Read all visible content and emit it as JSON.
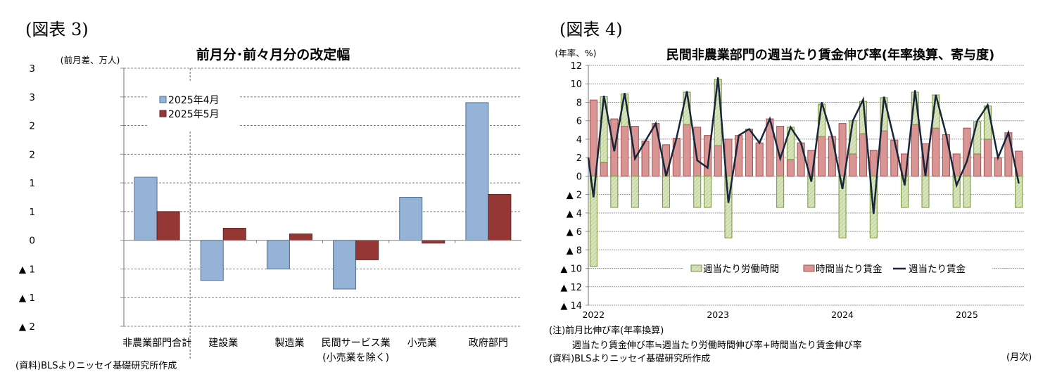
{
  "figures": [
    {
      "label": "(図表 3)"
    },
    {
      "label": "(図表 4)"
    }
  ],
  "chart_data": [
    {
      "type": "bar",
      "title": "前月分･前々月分の改定幅",
      "ylabel": "(前月差、万人)",
      "xlabel": "",
      "ylim": [
        -1.5,
        3.0
      ],
      "yticks": [
        3.0,
        2.5,
        2.0,
        1.5,
        1.0,
        0.5,
        0,
        -0.5,
        -1.0,
        -1.5
      ],
      "ytick_labels": [
        "3",
        "3",
        "2",
        "2",
        "1",
        "1",
        "0",
        "▲ 1",
        "▲ 1",
        "▲ 2"
      ],
      "grid": true,
      "legend_position": "upper-left-inside",
      "categories": [
        "非農業部門合計",
        "建設業",
        "製造業",
        "民間サービス業\n(小売業を除く)",
        "小売業",
        "政府部門"
      ],
      "series": [
        {
          "name": "2025年4月",
          "color": "#95b3d7",
          "border": "#4f6e94",
          "values": [
            1.1,
            -0.7,
            -0.5,
            -0.85,
            0.75,
            2.4
          ]
        },
        {
          "name": "2025年5月",
          "color": "#953735",
          "border": "#632523",
          "values": [
            0.5,
            0.21,
            0.11,
            -0.34,
            -0.05,
            0.8
          ]
        }
      ],
      "separator_after_category": 0,
      "source": "(資料)BLSよりニッセイ基礎研究所作成"
    },
    {
      "type": "bar",
      "subtype": "stacked-bar-with-line",
      "title": "民間非農業部門の週当たり賃金伸び率(年率換算、寄与度)",
      "ylabel": "(年率、%)",
      "xlabel": "(月次)",
      "ylim": [
        -14,
        12
      ],
      "yticks": [
        12,
        10,
        8,
        6,
        4,
        2,
        0,
        -2,
        -4,
        -6,
        -8,
        -10,
        -12,
        -14
      ],
      "ytick_labels": [
        "12",
        "10",
        "8",
        "6",
        "4",
        "2",
        "0",
        "▲ 2",
        "▲ 4",
        "▲ 6",
        "▲ 8",
        "▲ 10",
        "▲ 12",
        "▲ 14"
      ],
      "grid": true,
      "legend_position": "lower-center-inside",
      "x_year_labels": [
        {
          "index": 0,
          "label": "2022"
        },
        {
          "index": 12,
          "label": "2023"
        },
        {
          "index": 24,
          "label": "2024"
        },
        {
          "index": 36,
          "label": "2025"
        }
      ],
      "x": [
        "2022-01",
        "2022-02",
        "2022-03",
        "2022-04",
        "2022-05",
        "2022-06",
        "2022-07",
        "2022-08",
        "2022-09",
        "2022-10",
        "2022-11",
        "2022-12",
        "2023-01",
        "2023-02",
        "2023-03",
        "2023-04",
        "2023-05",
        "2023-06",
        "2023-07",
        "2023-08",
        "2023-09",
        "2023-10",
        "2023-11",
        "2023-12",
        "2024-01",
        "2024-02",
        "2024-03",
        "2024-04",
        "2024-05",
        "2024-06",
        "2024-07",
        "2024-08",
        "2024-09",
        "2024-10",
        "2024-11",
        "2024-12",
        "2025-01",
        "2025-02",
        "2025-03",
        "2025-04",
        "2025-05",
        "2025-06"
      ],
      "series": [
        {
          "name": "週当たり労働時間",
          "kind": "bar",
          "color": "#d7e4bd",
          "border": "#77933c",
          "values": [
            -9.8,
            7.1,
            -3.4,
            3.5,
            -3.4,
            0,
            0,
            -3.4,
            0,
            3.5,
            -3.4,
            -3.4,
            7.2,
            -6.7,
            0,
            0,
            0,
            0,
            -3.4,
            3.5,
            0,
            -3.4,
            3.5,
            0,
            -6.7,
            3.6,
            3.5,
            -6.7,
            3.6,
            0,
            -3.4,
            3.5,
            -3.4,
            3.6,
            0,
            -3.4,
            -3.4,
            3.5,
            3.6,
            0,
            0,
            -3.4
          ]
        },
        {
          "name": "時間当たり賃金",
          "kind": "bar",
          "color": "#d99594",
          "border": "#a0504e",
          "values": [
            8.25,
            1.5,
            6.2,
            5.4,
            5.4,
            3.8,
            5.7,
            3.4,
            4.1,
            5.6,
            5.3,
            4.4,
            3.3,
            4.0,
            4.4,
            5.1,
            3.6,
            6.2,
            5.4,
            1.8,
            3.6,
            2.8,
            4.3,
            4.3,
            5.7,
            2.4,
            4.6,
            2.8,
            4.9,
            3.9,
            2.4,
            5.6,
            3.5,
            5.2,
            4.5,
            2.4,
            5.2,
            2.4,
            4.0,
            2.0,
            4.7,
            2.7
          ]
        },
        {
          "name": "週当たり賃金",
          "kind": "line",
          "color": "#17263a",
          "values": [
            -2.3,
            8.7,
            2.7,
            9.0,
            1.9,
            3.8,
            5.7,
            0.0,
            4.1,
            9.2,
            1.7,
            0.9,
            10.7,
            -2.9,
            4.4,
            5.1,
            3.6,
            6.2,
            1.9,
            5.3,
            3.6,
            -0.6,
            8.0,
            4.3,
            -1.4,
            6.0,
            8.3,
            -4.1,
            8.6,
            3.9,
            -1.0,
            9.3,
            0.0,
            8.8,
            4.5,
            -1.0,
            1.6,
            6.0,
            7.7,
            2.0,
            4.7,
            -0.8
          ]
        }
      ],
      "line_start_value": 2.0,
      "notes": [
        "(注)前月比伸び率(年率換算)",
        "週当たり賃金伸び率≒週当たり労働時間伸び率+時間当たり賃金伸び率"
      ],
      "source": "(資料)BLSよりニッセイ基礎研究所作成"
    }
  ]
}
